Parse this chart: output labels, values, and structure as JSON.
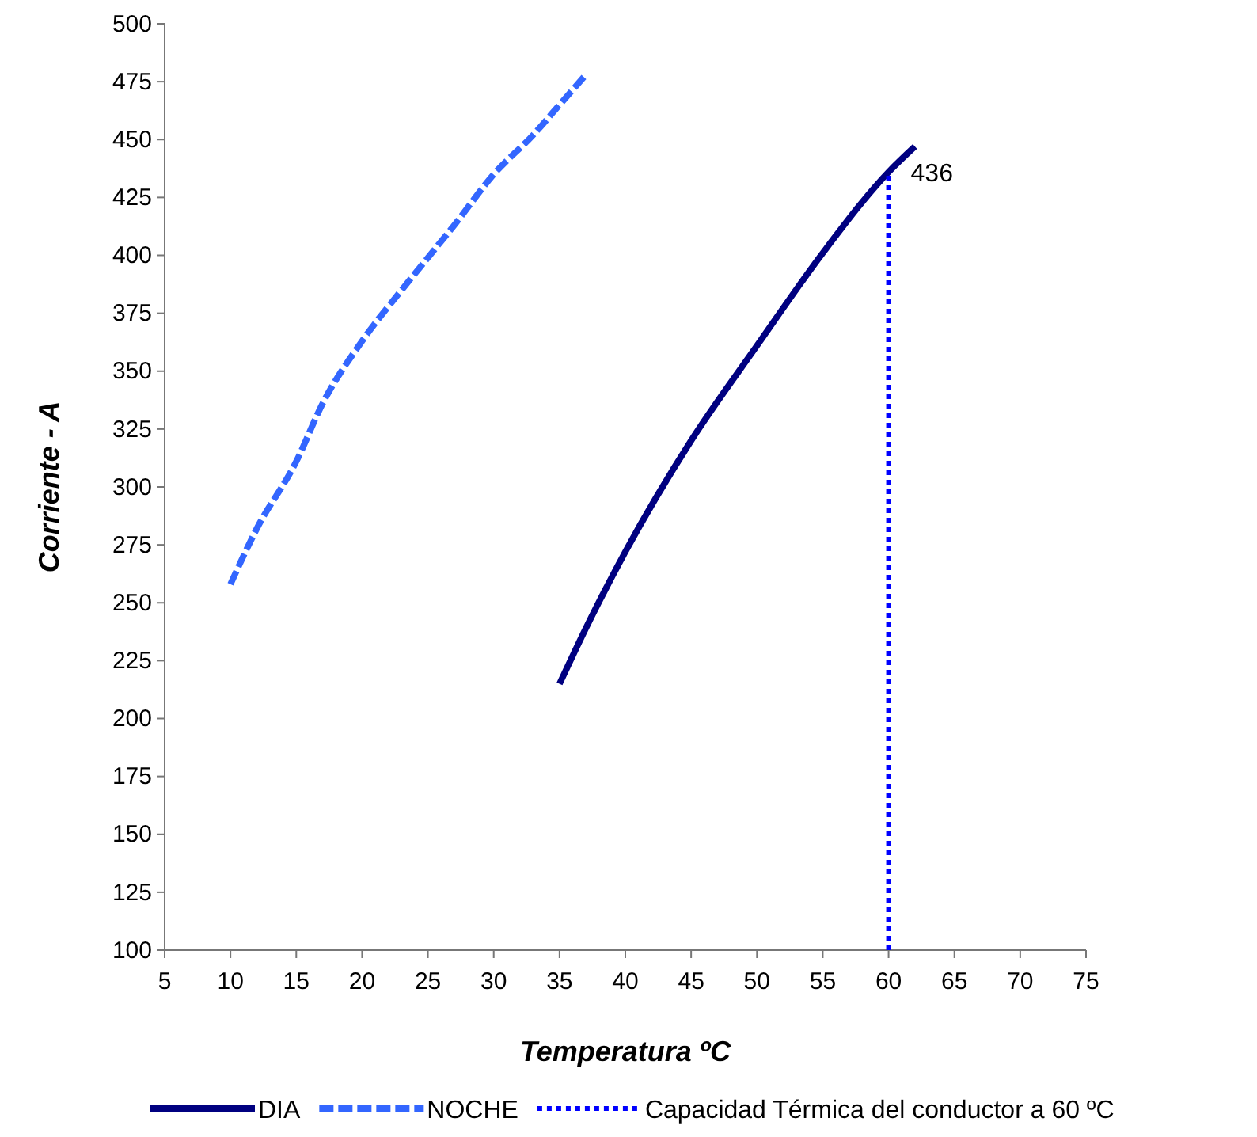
{
  "chart_data": {
    "type": "line",
    "xlabel": "Temperatura ºC",
    "ylabel": "Corriente - A",
    "xlim": [
      5,
      75
    ],
    "xticks": [
      5,
      10,
      15,
      20,
      25,
      30,
      35,
      40,
      45,
      50,
      55,
      60,
      65,
      70,
      75
    ],
    "ylim": [
      100,
      500
    ],
    "yticks": [
      100,
      125,
      150,
      175,
      200,
      225,
      250,
      275,
      300,
      325,
      350,
      375,
      400,
      425,
      450,
      475,
      500
    ],
    "grid": false,
    "legend": "bottom",
    "marker": "none",
    "series": [
      {
        "name": "DIA",
        "color": "#000080",
        "line_style": "solid",
        "x": [
          35,
          37,
          40,
          45,
          50,
          55,
          60,
          62
        ],
        "values": [
          215,
          239,
          272,
          320,
          361,
          401,
          436,
          447
        ]
      },
      {
        "name": "NOCHE",
        "color": "#3366ff",
        "line_style": "dashed",
        "x": [
          10,
          12,
          15,
          17,
          20,
          23,
          25,
          27,
          30,
          33,
          35,
          37
        ],
        "values": [
          258,
          282,
          311,
          336,
          363,
          385,
          399,
          413,
          435,
          452,
          465,
          478
        ]
      },
      {
        "name": "Capacidad Térmica del conductor a 60 ºC",
        "color": "#0000ff",
        "line_style": "dotted",
        "x": [
          60,
          60
        ],
        "values": [
          100,
          436
        ]
      }
    ],
    "annotations": [
      {
        "text": "436",
        "x": 60,
        "y": 436
      }
    ]
  }
}
